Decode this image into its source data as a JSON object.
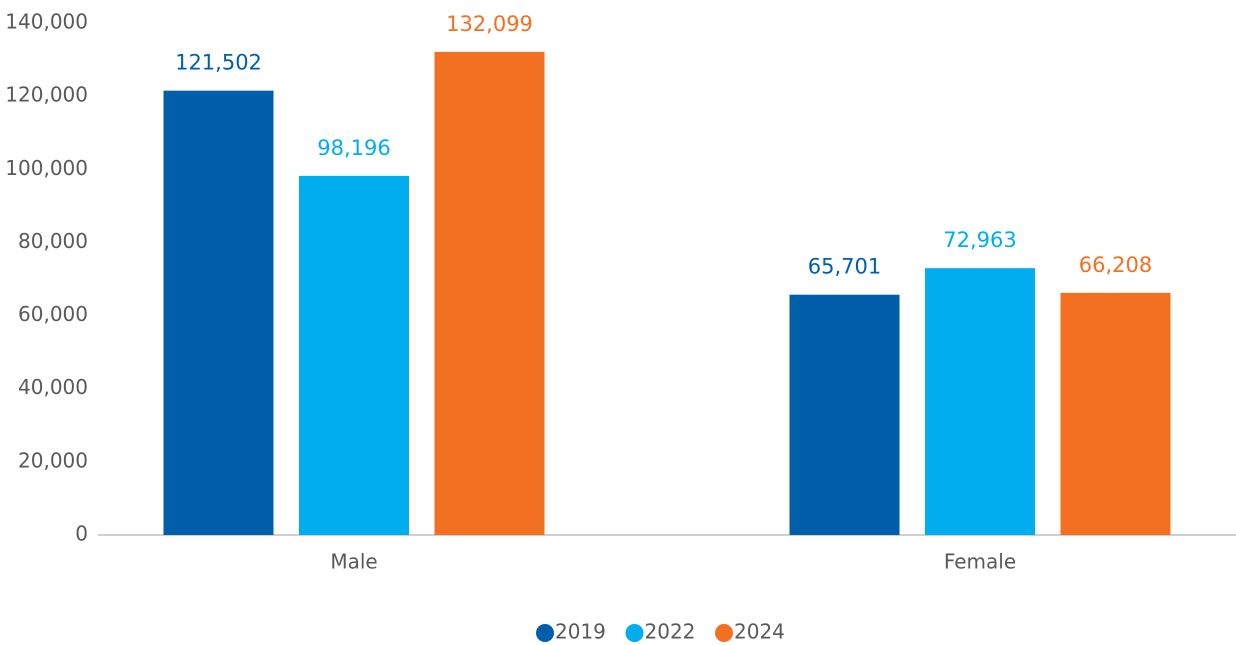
{
  "chart_data": {
    "type": "bar",
    "categories": [
      "Male",
      "Female"
    ],
    "series": [
      {
        "name": "2019",
        "color": "#005eaa",
        "values": [
          121502,
          65701
        ],
        "value_labels": [
          "121,502",
          "65,701"
        ]
      },
      {
        "name": "2022",
        "color": "#00aeef",
        "values": [
          98196,
          72963
        ],
        "value_labels": [
          "98,196",
          "72,963"
        ]
      },
      {
        "name": "2024",
        "color": "#f36f21",
        "values": [
          132099,
          66208
        ],
        "value_labels": [
          "132,099",
          "66,208"
        ]
      }
    ],
    "ylim": [
      0,
      140000
    ],
    "yticks": [
      0,
      {
        "value": 20000,
        "label": "20,000"
      },
      {
        "value": 40000,
        "label": "40,000"
      },
      {
        "value": 60000,
        "label": "60,000"
      },
      {
        "value": 80000,
        "label": "80,000"
      },
      {
        "value": 100000,
        "label": "100,000"
      },
      {
        "value": 120000,
        "label": "120,000"
      },
      {
        "value": 140000,
        "label": "140,000"
      }
    ],
    "grid": false,
    "legend": "bottom"
  }
}
